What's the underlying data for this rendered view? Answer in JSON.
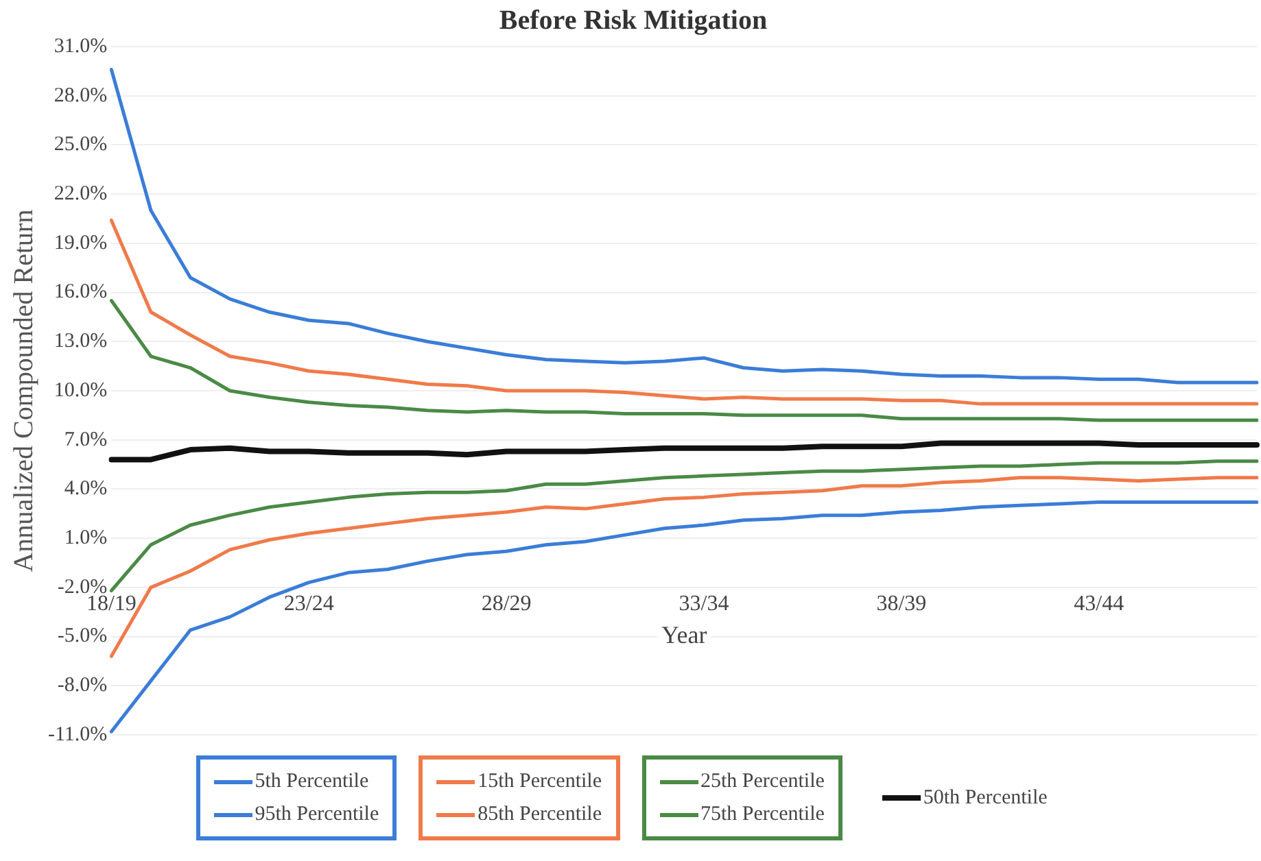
{
  "chart_data": {
    "type": "line",
    "title": "Before Risk Mitigation",
    "xlabel": "Year",
    "ylabel": "Annualized Compounded Return",
    "categories": [
      "18/19",
      null,
      null,
      null,
      null,
      "23/24",
      null,
      null,
      null,
      null,
      "28/29",
      null,
      null,
      null,
      null,
      "33/34",
      null,
      null,
      null,
      null,
      "38/39",
      null,
      null,
      null,
      null,
      "43/44",
      null,
      null,
      null,
      null
    ],
    "ylim": [
      -11,
      31
    ],
    "yticks": [
      {
        "value": 31,
        "label": "31.0%"
      },
      {
        "value": 28,
        "label": "28.0%"
      },
      {
        "value": 25,
        "label": "25.0%"
      },
      {
        "value": 22,
        "label": "22.0%"
      },
      {
        "value": 19,
        "label": "19.0%"
      },
      {
        "value": 16,
        "label": "16.0%"
      },
      {
        "value": 13,
        "label": "13.0%"
      },
      {
        "value": 10,
        "label": "10.0%"
      },
      {
        "value": 7,
        "label": "7.0%"
      },
      {
        "value": 4,
        "label": "4.0%"
      },
      {
        "value": 1,
        "label": "1.0%"
      },
      {
        "value": -2,
        "label": "-2.0%"
      },
      {
        "value": -5,
        "label": "-5.0%"
      },
      {
        "value": -8,
        "label": "-8.0%"
      },
      {
        "value": -11,
        "label": "-11.0%"
      }
    ],
    "grid": "y",
    "legend": "bottom",
    "marker": "none",
    "line_style": "solid",
    "series": [
      {
        "name": "5th Percentile",
        "color": "#3b7dd8",
        "values": [
          -10.8,
          -7.7,
          -4.6,
          -3.8,
          -2.6,
          -1.7,
          -1.1,
          -0.9,
          -0.4,
          0.0,
          0.2,
          0.6,
          0.8,
          1.2,
          1.6,
          1.8,
          2.1,
          2.2,
          2.4,
          2.4,
          2.6,
          2.7,
          2.9,
          3.0,
          3.1,
          3.2,
          3.2,
          3.2,
          3.2,
          3.2
        ]
      },
      {
        "name": "95th Percentile",
        "color": "#3b7dd8",
        "values": [
          29.6,
          21.0,
          16.9,
          15.6,
          14.8,
          14.3,
          14.1,
          13.5,
          13.0,
          12.6,
          12.2,
          11.9,
          11.8,
          11.7,
          11.8,
          12.0,
          11.4,
          11.2,
          11.3,
          11.2,
          11.0,
          10.9,
          10.9,
          10.8,
          10.8,
          10.7,
          10.7,
          10.5,
          10.5,
          10.5
        ]
      },
      {
        "name": "15th Percentile",
        "color": "#f07a4a",
        "values": [
          -6.2,
          -2.0,
          -1.0,
          0.3,
          0.9,
          1.3,
          1.6,
          1.9,
          2.2,
          2.4,
          2.6,
          2.9,
          2.8,
          3.1,
          3.4,
          3.5,
          3.7,
          3.8,
          3.9,
          4.2,
          4.2,
          4.4,
          4.5,
          4.7,
          4.7,
          4.6,
          4.5,
          4.6,
          4.7,
          4.7
        ]
      },
      {
        "name": "85th Percentile",
        "color": "#f07a4a",
        "values": [
          20.4,
          14.8,
          13.4,
          12.1,
          11.7,
          11.2,
          11.0,
          10.7,
          10.4,
          10.3,
          10.0,
          10.0,
          10.0,
          9.9,
          9.7,
          9.5,
          9.6,
          9.5,
          9.5,
          9.5,
          9.4,
          9.4,
          9.2,
          9.2,
          9.2,
          9.2,
          9.2,
          9.2,
          9.2,
          9.2
        ]
      },
      {
        "name": "25th Percentile",
        "color": "#4a8a45",
        "values": [
          -2.2,
          0.6,
          1.8,
          2.4,
          2.9,
          3.2,
          3.5,
          3.7,
          3.8,
          3.8,
          3.9,
          4.3,
          4.3,
          4.5,
          4.7,
          4.8,
          4.9,
          5.0,
          5.1,
          5.1,
          5.2,
          5.3,
          5.4,
          5.4,
          5.5,
          5.6,
          5.6,
          5.6,
          5.7,
          5.7
        ]
      },
      {
        "name": "75th Percentile",
        "color": "#4a8a45",
        "values": [
          15.5,
          12.1,
          11.4,
          10.0,
          9.6,
          9.3,
          9.1,
          9.0,
          8.8,
          8.7,
          8.8,
          8.7,
          8.7,
          8.6,
          8.6,
          8.6,
          8.5,
          8.5,
          8.5,
          8.5,
          8.3,
          8.3,
          8.3,
          8.3,
          8.3,
          8.2,
          8.2,
          8.2,
          8.2,
          8.2
        ]
      },
      {
        "name": "50th Percentile",
        "color": "#111111",
        "values": [
          5.8,
          5.8,
          6.4,
          6.5,
          6.3,
          6.3,
          6.2,
          6.2,
          6.2,
          6.1,
          6.3,
          6.3,
          6.3,
          6.4,
          6.5,
          6.5,
          6.5,
          6.5,
          6.6,
          6.6,
          6.6,
          6.8,
          6.8,
          6.8,
          6.8,
          6.8,
          6.7,
          6.7,
          6.7,
          6.7
        ]
      }
    ]
  }
}
